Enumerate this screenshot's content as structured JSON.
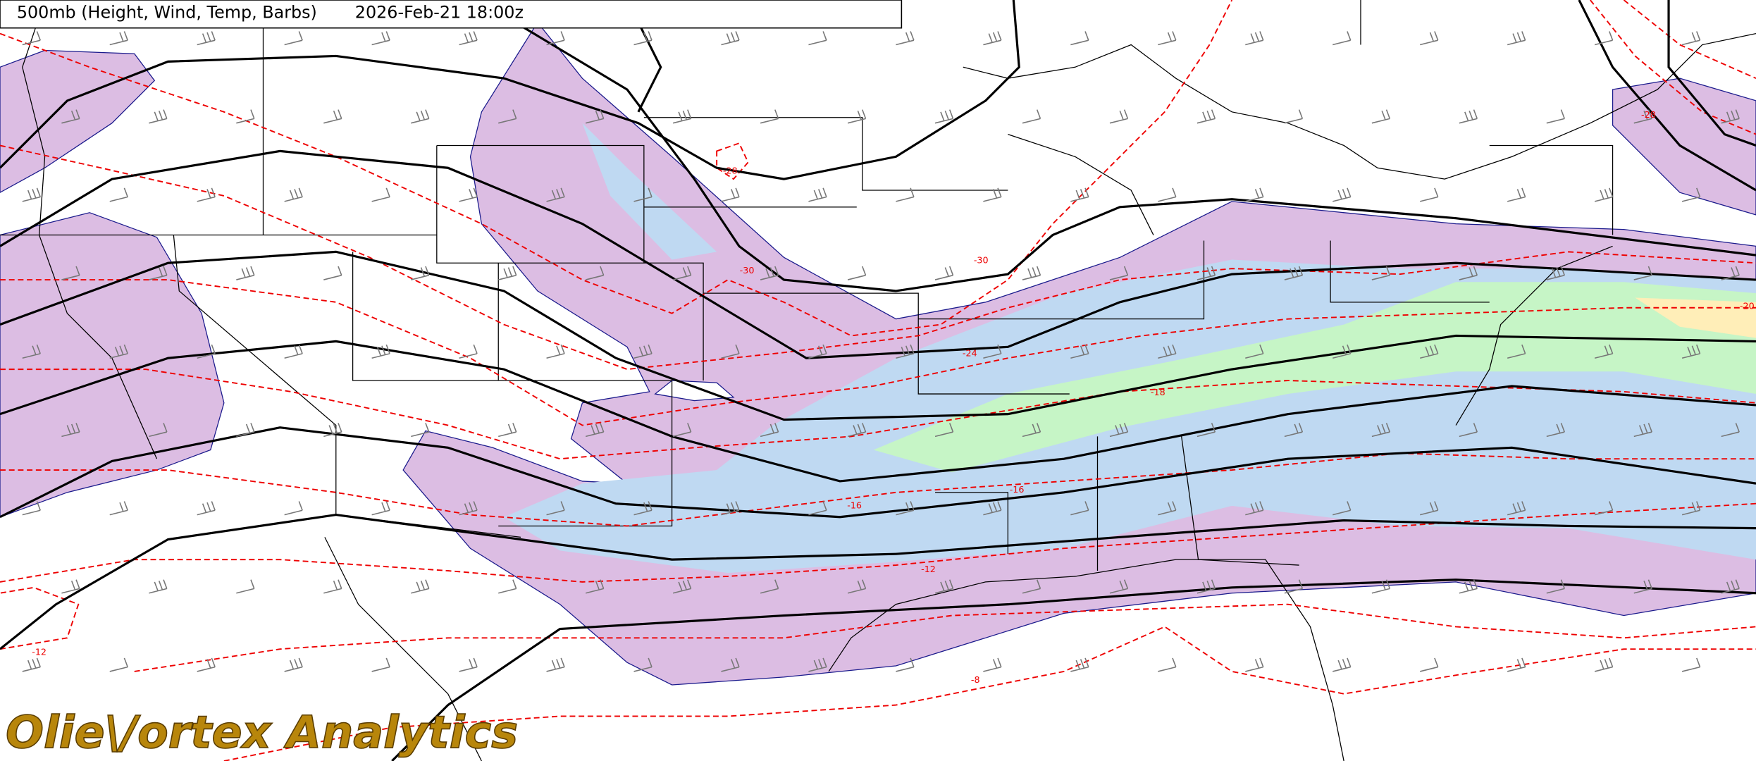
{
  "header": {
    "title": "500mb (Height, Wind, Temp, Barbs)",
    "time": "2026-Feb-21 18:00z"
  },
  "contour_labels": [
    "-28",
    "-30",
    "-30",
    "-24",
    "-18",
    "-16",
    "-16",
    "-12",
    "-12",
    "-8",
    "-20",
    "-28"
  ],
  "watermark": "Olie\\/ortex Analytics"
}
